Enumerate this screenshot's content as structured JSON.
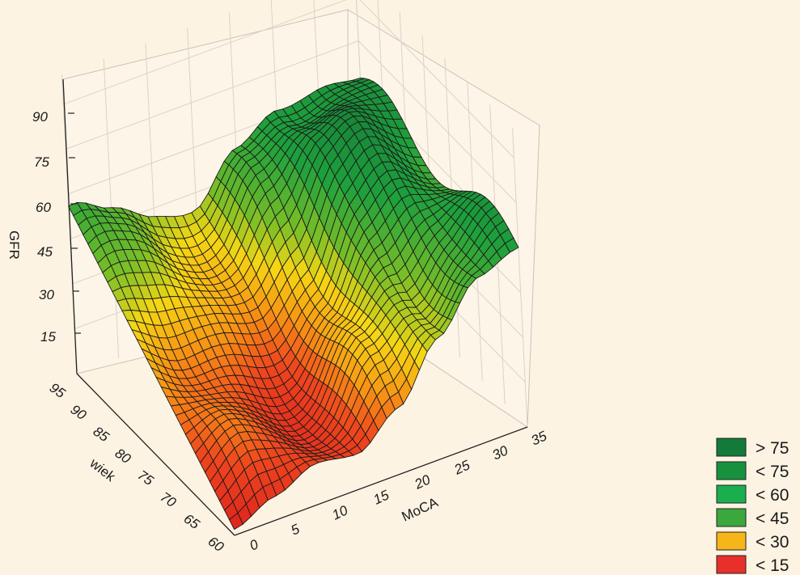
{
  "chart_data": {
    "type": "surface3d",
    "title": "",
    "zlabel": "GFR",
    "xlabel": "MoCA",
    "ylabel": "wiek",
    "z_ticks": [
      "15",
      "30",
      "45",
      "60",
      "75",
      "90"
    ],
    "x_ticks": [
      "0",
      "5",
      "10",
      "15",
      "20",
      "25",
      "30",
      "35"
    ],
    "y_ticks": [
      "60",
      "65",
      "70",
      "75",
      "80",
      "85",
      "90",
      "95"
    ],
    "x_range": [
      0,
      35
    ],
    "y_range": [
      60,
      95
    ],
    "z_range": [
      0,
      100
    ],
    "grid": true,
    "legend_position": "bottom-right",
    "legend": [
      {
        "label": "> 75",
        "color": "#137a3a"
      },
      {
        "label": "< 75",
        "color": "#16923f"
      },
      {
        "label": "< 60",
        "color": "#1aae4e"
      },
      {
        "label": "< 45",
        "color": "#3aa83c"
      },
      {
        "label": "< 30",
        "color": "#f6b61a"
      },
      {
        "label": "< 15",
        "color": "#e8302b"
      }
    ],
    "surface_samples": {
      "moca": [
        0,
        5,
        10,
        15,
        20,
        25,
        30,
        35
      ],
      "wiek": [
        60,
        65,
        70,
        75,
        80,
        85,
        90,
        95
      ],
      "gfr_at_wiek_95": [
        56,
        48,
        44,
        40,
        52,
        62,
        64,
        60
      ],
      "gfr_at_wiek_60": [
        2,
        8,
        14,
        12,
        22,
        40,
        55,
        60
      ]
    }
  }
}
